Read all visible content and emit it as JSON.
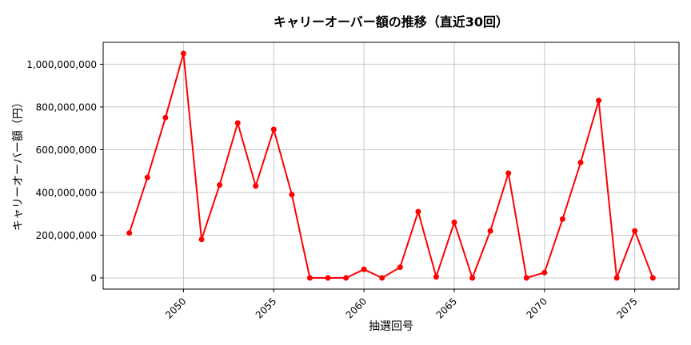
{
  "chart_data": {
    "type": "line",
    "title": "キャリーオーバー額の推移（直近30回）",
    "xlabel": "抽選回号",
    "ylabel": "キャリーオーバー額（円）",
    "x": [
      2047,
      2048,
      2049,
      2050,
      2051,
      2052,
      2053,
      2054,
      2055,
      2056,
      2057,
      2058,
      2059,
      2060,
      2061,
      2062,
      2063,
      2064,
      2065,
      2066,
      2067,
      2068,
      2069,
      2070,
      2071,
      2072,
      2073,
      2074,
      2075,
      2076
    ],
    "values": [
      210000000,
      470000000,
      750000000,
      1050000000,
      180000000,
      435000000,
      725000000,
      430000000,
      695000000,
      390000000,
      0,
      0,
      0,
      40000000,
      0,
      50000000,
      310000000,
      5000000,
      260000000,
      0,
      220000000,
      490000000,
      0,
      25000000,
      275000000,
      540000000,
      830000000,
      0,
      220000000,
      0
    ],
    "x_ticks": [
      2050,
      2055,
      2060,
      2065,
      2070,
      2075
    ],
    "x_tick_labels": [
      "2050",
      "2055",
      "2060",
      "2065",
      "2070",
      "2075"
    ],
    "y_ticks": [
      0,
      200000000,
      400000000,
      600000000,
      800000000,
      1000000000
    ],
    "y_tick_labels": [
      "0",
      "200,000,000",
      "400,000,000",
      "600,000,000",
      "800,000,000",
      "1,000,000,000"
    ],
    "xlim": [
      2045.55,
      2077.45
    ],
    "ylim": [
      -52500000,
      1102500000
    ],
    "grid": true,
    "legend": "none",
    "line_color": "#ff0000",
    "marker": "circle",
    "grid_color": "#c8c8c8",
    "spine_color": "#000000",
    "background_color": "#ffffff"
  }
}
